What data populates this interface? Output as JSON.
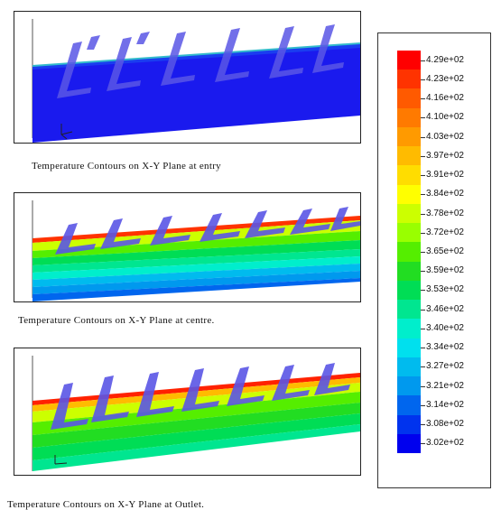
{
  "captions": {
    "entry": "Temperature Contours on X-Y Plane at entry",
    "centre": "Temperature Contours on X-Y Plane at centre.",
    "outlet": "Temperature Contours on X-Y Plane at Outlet."
  },
  "legend": {
    "labels": [
      "4.29e+02",
      "4.23e+02",
      "4.16e+02",
      "4.10e+02",
      "4.03e+02",
      "3.97e+02",
      "3.91e+02",
      "3.84e+02",
      "3.78e+02",
      "3.72e+02",
      "3.65e+02",
      "3.59e+02",
      "3.53e+02",
      "3.46e+02",
      "3.40e+02",
      "3.34e+02",
      "3.27e+02",
      "3.21e+02",
      "3.14e+02",
      "3.08e+02",
      "3.02e+02"
    ],
    "colors": [
      "#ff0000",
      "#ff3300",
      "#ff5a00",
      "#ff7a00",
      "#ff9a00",
      "#ffbb00",
      "#ffdd00",
      "#ffff00",
      "#ccff00",
      "#99ff00",
      "#55ee00",
      "#22dd22",
      "#00dd55",
      "#00e690",
      "#00eecc",
      "#00e0ee",
      "#00bbee",
      "#0099ee",
      "#0066ee",
      "#0033ee",
      "#0000ee"
    ]
  },
  "colors": {
    "fin": "#5a56e6",
    "background": "#ffffff"
  }
}
